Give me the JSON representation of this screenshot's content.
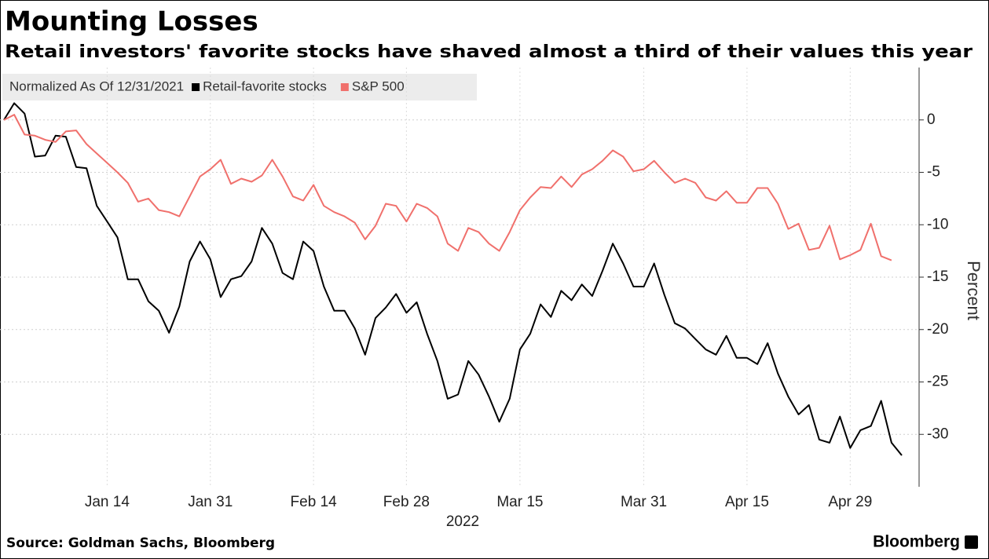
{
  "chart_data": {
    "type": "line",
    "title": "Mounting Losses",
    "subtitle": "Retail investors' favorite stocks have shaved almost a third of their values this year",
    "legend_title": "Normalized As Of 12/31/2021",
    "y_axis_label": "Percent",
    "x_axis_label": "2022",
    "source": "Source: Goldman Sachs, Bloomberg",
    "brand": "Bloomberg",
    "categories": [
      null,
      null,
      null,
      null,
      null,
      null,
      null,
      null,
      null,
      null,
      "Jan 14",
      null,
      null,
      null,
      null,
      null,
      null,
      null,
      null,
      null,
      "Jan 31",
      null,
      null,
      null,
      null,
      null,
      null,
      null,
      null,
      null,
      "Feb 14",
      null,
      null,
      null,
      null,
      null,
      null,
      null,
      null,
      "Feb 28",
      null,
      null,
      null,
      null,
      null,
      null,
      null,
      null,
      null,
      null,
      "Mar 15",
      null,
      null,
      null,
      null,
      null,
      null,
      null,
      null,
      null,
      null,
      null,
      "Mar 31",
      null,
      null,
      null,
      null,
      null,
      null,
      null,
      null,
      null,
      "Apr 15",
      null,
      null,
      null,
      null,
      null,
      null,
      null,
      null,
      null,
      "Apr 29",
      null,
      null,
      null,
      null,
      null
    ],
    "series": [
      {
        "name": "Retail-favorite stocks",
        "color": "#000000",
        "values": [
          0,
          1.6,
          0.6,
          -3.5,
          -3.4,
          -1.5,
          -1.6,
          -4.5,
          -4.6,
          -8.2,
          -9.7,
          -11.2,
          -15.2,
          -15.2,
          -17.3,
          -18.2,
          -20.3,
          -17.8,
          -13.5,
          -11.6,
          -13.3,
          -16.9,
          -15.2,
          -14.9,
          -13.5,
          -10.3,
          -11.8,
          -14.6,
          -15.2,
          -11.6,
          -12.5,
          -15.9,
          -18.2,
          -18.2,
          -19.9,
          -22.4,
          -18.9,
          -17.9,
          -16.6,
          -18.4,
          -17.4,
          -20.4,
          -23.0,
          -26.6,
          -26.2,
          -23.0,
          -24.3,
          -26.4,
          -28.8,
          -26.6,
          -21.9,
          -20.4,
          -17.6,
          -18.8,
          -16.3,
          -17.2,
          -15.7,
          -16.8,
          -14.4,
          -11.8,
          -13.7,
          -15.9,
          -15.9,
          -13.7,
          -16.7,
          -19.4,
          -19.9,
          -20.9,
          -21.9,
          -22.4,
          -20.6,
          -22.7,
          -22.7,
          -23.3,
          -21.3,
          -24.2,
          -26.4,
          -28.1,
          -27.2,
          -30.5,
          -30.8,
          -28.3,
          -31.3,
          -29.6,
          -29.2,
          -26.8,
          -30.8,
          -32.0
        ]
      },
      {
        "name": "S&P 500",
        "color": "#f0706c",
        "values": [
          0,
          0.5,
          -1.4,
          -1.5,
          -1.9,
          -2.1,
          -1.1,
          -1.0,
          -2.3,
          -3.2,
          -4.1,
          -5.0,
          -6.0,
          -7.8,
          -7.5,
          -8.6,
          -8.8,
          -9.2,
          -7.3,
          -5.4,
          -4.7,
          -3.8,
          -6.1,
          -5.6,
          -5.9,
          -5.3,
          -3.8,
          -5.4,
          -7.3,
          -7.7,
          -6.2,
          -8.2,
          -8.8,
          -9.2,
          -9.8,
          -11.4,
          -10.1,
          -8.0,
          -8.2,
          -9.7,
          -8.0,
          -8.4,
          -9.2,
          -11.8,
          -12.5,
          -10.3,
          -10.7,
          -11.8,
          -12.5,
          -10.7,
          -8.6,
          -7.4,
          -6.4,
          -6.5,
          -5.4,
          -6.4,
          -5.2,
          -4.7,
          -3.9,
          -2.9,
          -3.5,
          -4.9,
          -4.7,
          -3.9,
          -5.0,
          -6.0,
          -5.6,
          -6.0,
          -7.4,
          -7.7,
          -6.8,
          -7.9,
          -7.9,
          -6.5,
          -6.5,
          -8.0,
          -10.4,
          -9.9,
          -12.4,
          -12.2,
          -10.1,
          -13.3,
          -12.9,
          -12.4,
          -9.9,
          -13.0,
          -13.4,
          null
        ]
      }
    ],
    "ylim": [
      -35,
      5
    ],
    "yticks": [
      0,
      -5,
      -10,
      -15,
      -20,
      -25,
      -30
    ],
    "y_axis_side": "right",
    "grid": true
  }
}
